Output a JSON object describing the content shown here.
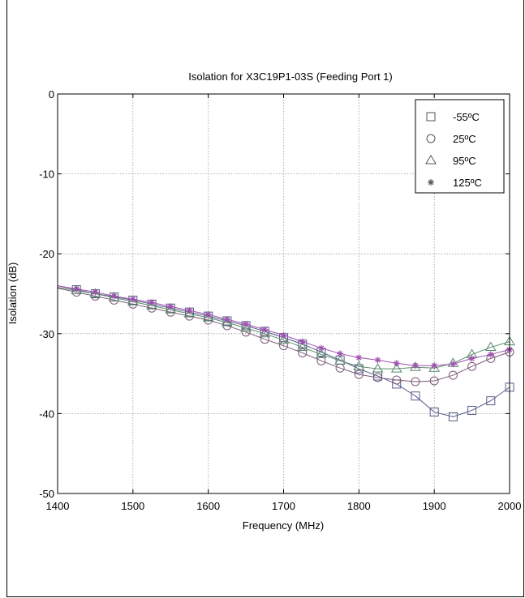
{
  "chart_data": {
    "type": "line",
    "title": "Isolation for X3C19P1-03S (Feeding Port 1)",
    "xlabel": "Frequency (MHz)",
    "ylabel": "Isolation (dB)",
    "xlim": [
      1400,
      2000
    ],
    "ylim": [
      -50,
      0
    ],
    "xticks": [
      1400,
      1500,
      1600,
      1700,
      1800,
      1900,
      2000
    ],
    "yticks": [
      0,
      -10,
      -20,
      -30,
      -40,
      -50
    ],
    "grid": true,
    "legend_position": "top-right",
    "x": [
      1425,
      1450,
      1475,
      1500,
      1525,
      1550,
      1575,
      1600,
      1625,
      1650,
      1675,
      1700,
      1725,
      1750,
      1775,
      1800,
      1825,
      1850,
      1875,
      1900,
      1925,
      1950,
      1975,
      2000
    ],
    "series": [
      {
        "name": "-55ºC",
        "marker": "square",
        "color": "#555b8a",
        "values": [
          -24.5,
          -25.0,
          -25.4,
          -25.8,
          -26.3,
          -26.8,
          -27.3,
          -27.8,
          -28.4,
          -29.0,
          -29.7,
          -30.5,
          -31.3,
          -32.3,
          -33.3,
          -34.4,
          -35.3,
          -36.3,
          -37.8,
          -39.8,
          -40.4,
          -39.6,
          -38.4,
          -36.7
        ]
      },
      {
        "name": "25ºC",
        "marker": "circle",
        "color": "#7a5a78",
        "values": [
          -24.8,
          -25.3,
          -25.8,
          -26.3,
          -26.8,
          -27.3,
          -27.8,
          -28.3,
          -29.0,
          -29.8,
          -30.7,
          -31.5,
          -32.4,
          -33.4,
          -34.3,
          -35.1,
          -35.5,
          -35.8,
          -36.0,
          -35.9,
          -35.2,
          -34.1,
          -33.1,
          -32.3
        ]
      },
      {
        "name": "95ºC",
        "marker": "triangle",
        "color": "#5a8a6a",
        "values": [
          -24.6,
          -25.0,
          -25.5,
          -26.0,
          -26.5,
          -27.0,
          -27.5,
          -28.0,
          -28.6,
          -29.3,
          -30.0,
          -30.8,
          -31.7,
          -32.6,
          -33.4,
          -34.1,
          -34.4,
          -34.4,
          -34.2,
          -34.3,
          -33.7,
          -32.6,
          -31.7,
          -31.0
        ]
      },
      {
        "name": "125ºC",
        "marker": "star",
        "color": "#a050b0",
        "values": [
          -24.4,
          -24.8,
          -25.3,
          -25.7,
          -26.1,
          -26.6,
          -27.1,
          -27.6,
          -28.2,
          -28.8,
          -29.5,
          -30.2,
          -31.0,
          -31.8,
          -32.5,
          -33.0,
          -33.3,
          -33.7,
          -34.0,
          -34.0,
          -33.8,
          -33.1,
          -32.6,
          -32.0
        ]
      }
    ]
  }
}
